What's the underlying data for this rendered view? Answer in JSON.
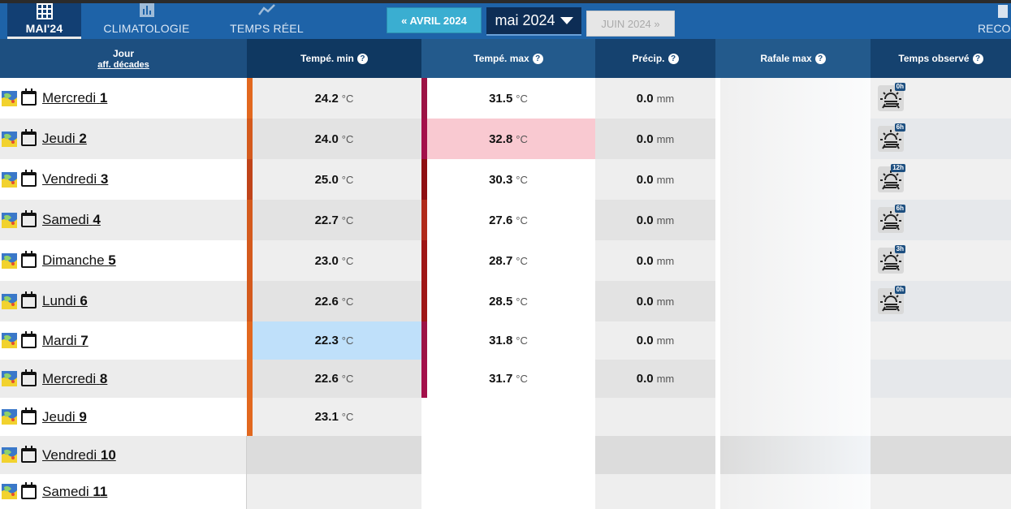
{
  "nav": {
    "tabs": [
      {
        "label": "MAI'24",
        "icon": "calendar-grid-icon"
      },
      {
        "label": "CLIMATOLOGIE",
        "icon": "bar-chart-icon"
      },
      {
        "label": "TEMPS RÉEL",
        "icon": "trend-line-icon"
      }
    ],
    "prev_month": "« AVRIL 2024",
    "current_month": "mai 2024",
    "next_month": "JUIN 2024 »",
    "records_label": "RECO"
  },
  "columns": {
    "day": "Jour",
    "day_link": "aff. décades",
    "tmin": "Tempé. min",
    "tmax": "Tempé. max",
    "precip": "Précip.",
    "gust": "Rafale max",
    "observed": "Temps observé",
    "help": "?"
  },
  "units": {
    "temp": "°C",
    "precip": "mm"
  },
  "colors": {
    "header_bg": "#1e63a8",
    "thead_bg": "#1d4f80",
    "tmax_highlight": "#f9c9d1",
    "tmin_highlight": "#bfe0fa"
  },
  "rows": [
    {
      "weekday": "Mercredi",
      "day": "1",
      "tmin": "24.2",
      "tmax": "31.5",
      "precip": "0.0",
      "obs_badge": "0h"
    },
    {
      "weekday": "Jeudi",
      "day": "2",
      "tmin": "24.0",
      "tmax": "32.8",
      "precip": "0.0",
      "obs_badge": "6h",
      "tmax_hl": true
    },
    {
      "weekday": "Vendredi",
      "day": "3",
      "tmin": "25.0",
      "tmax": "30.3",
      "precip": "0.0",
      "obs_badge": "12h"
    },
    {
      "weekday": "Samedi",
      "day": "4",
      "tmin": "22.7",
      "tmax": "27.6",
      "precip": "0.0",
      "obs_badge": "6h"
    },
    {
      "weekday": "Dimanche",
      "day": "5",
      "tmin": "23.0",
      "tmax": "28.7",
      "precip": "0.0",
      "obs_badge": "3h"
    },
    {
      "weekday": "Lundi",
      "day": "6",
      "tmin": "22.6",
      "tmax": "28.5",
      "precip": "0.0",
      "obs_badge": "0h"
    },
    {
      "weekday": "Mardi",
      "day": "7",
      "tmin": "22.3",
      "tmax": "31.8",
      "precip": "0.0",
      "tmin_hl": true
    },
    {
      "weekday": "Mercredi",
      "day": "8",
      "tmin": "22.6",
      "tmax": "31.7",
      "precip": "0.0"
    },
    {
      "weekday": "Jeudi",
      "day": "9",
      "tmin": "23.1"
    },
    {
      "weekday": "Vendredi",
      "day": "10"
    },
    {
      "weekday": "Samedi",
      "day": "11"
    }
  ]
}
